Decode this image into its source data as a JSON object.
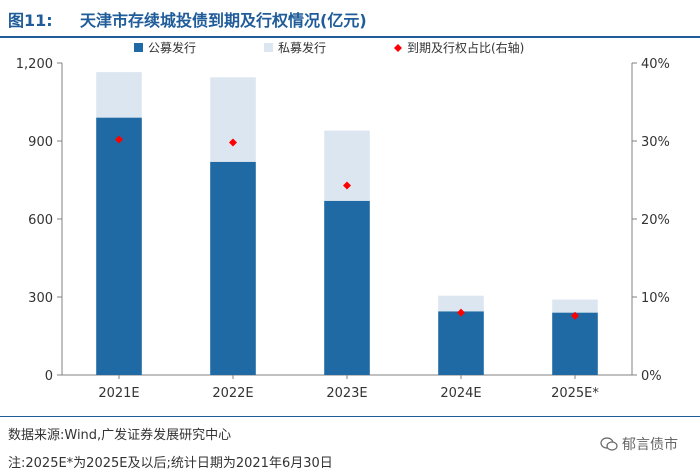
{
  "figure": {
    "label": "图11:",
    "title": "天津市存续城投债到期及行权情况(亿元)"
  },
  "footer": {
    "source": "数据来源:Wind,广发证券发展研究中心",
    "note": "注:2025E*为2025E及以后;统计日期为2021年6月30日",
    "watermark": "郁言债市",
    "watermark_icon": "wechat-icon"
  },
  "colors": {
    "public": "#1f6aa5",
    "private": "#dce6f1",
    "ratio": "#ff0000",
    "axis": "#808080",
    "title": "#1f5c99"
  },
  "chart_data": {
    "type": "bar",
    "stacked": true,
    "categories": [
      "2021E",
      "2022E",
      "2023E",
      "2024E",
      "2025E*"
    ],
    "series": [
      {
        "name": "公募发行",
        "values": [
          990,
          820,
          670,
          245,
          240
        ]
      },
      {
        "name": "私募发行",
        "values": [
          175,
          325,
          270,
          60,
          50
        ]
      },
      {
        "name": "到期及行权占比(右轴)",
        "axis": "right",
        "type": "scatter",
        "values": [
          30.2,
          29.8,
          24.3,
          8.0,
          7.6
        ]
      }
    ],
    "ylim": [
      0,
      1200
    ],
    "yticks": [
      "0",
      "300",
      "600",
      "900",
      "1,200"
    ],
    "y2lim": [
      0,
      40
    ],
    "y2ticks": [
      "0%",
      "10%",
      "20%",
      "30%",
      "40%"
    ],
    "legend": "top"
  }
}
